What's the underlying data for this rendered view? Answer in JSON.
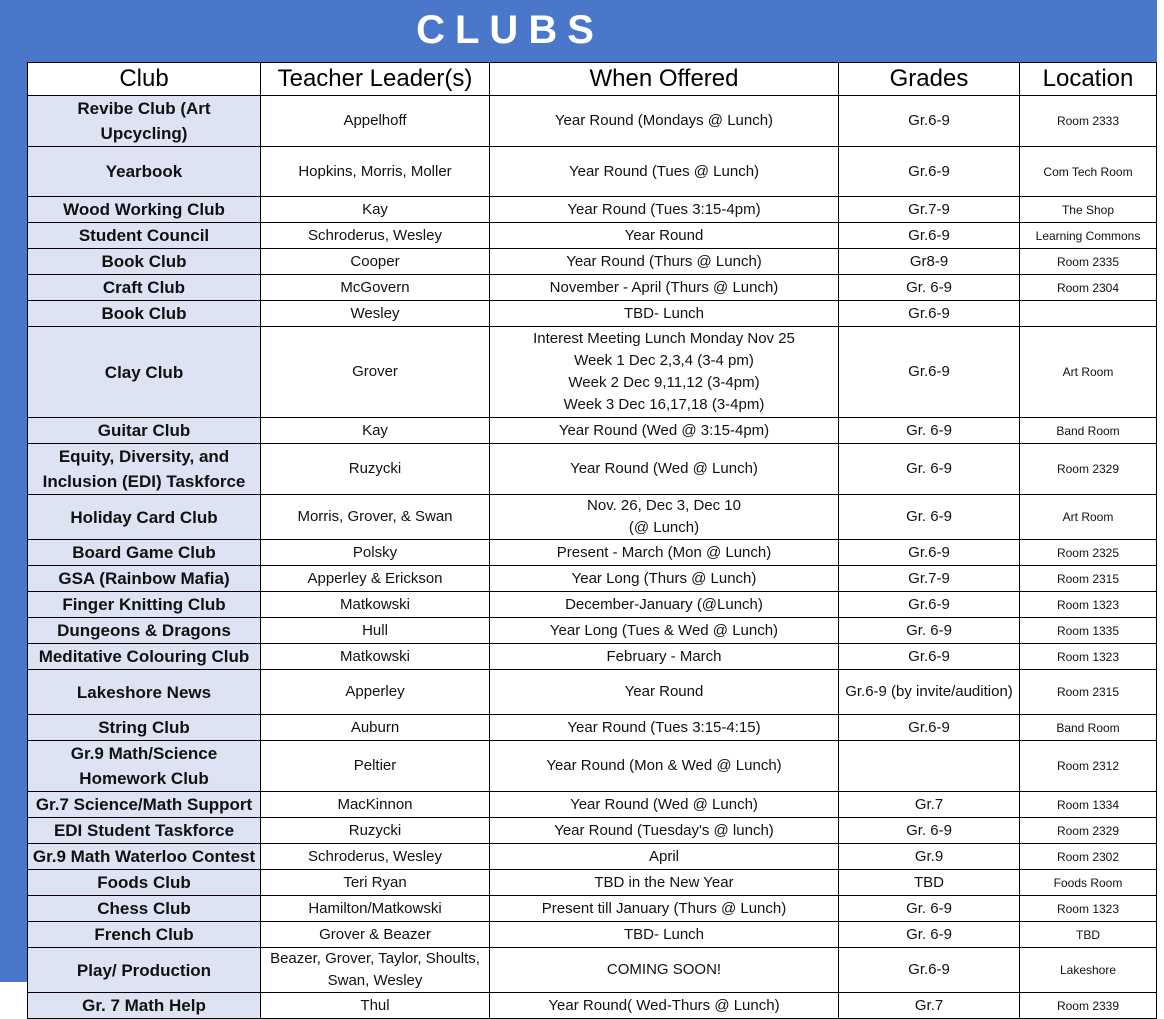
{
  "title": "CLUBS",
  "table": {
    "headers": [
      "Club",
      "Teacher Leader(s)",
      "When Offered",
      "Grades",
      "Location"
    ],
    "rows": [
      [
        "Revibe Club (Art Upcycling)",
        "Appelhoff",
        "Year Round (Mondays @ Lunch)",
        "Gr.6-9",
        "Room 2333"
      ],
      [
        "Yearbook",
        "Hopkins,  Morris, Moller",
        "Year Round (Tues @ Lunch)",
        "Gr.6-9",
        "Com Tech Room"
      ],
      [
        "Wood Working Club",
        "Kay",
        "Year Round (Tues 3:15-4pm)",
        "Gr.7-9",
        "The Shop"
      ],
      [
        "Student Council",
        "Schroderus, Wesley",
        "Year Round",
        "Gr.6-9",
        "Learning Commons"
      ],
      [
        "Book Club",
        "Cooper",
        "Year Round (Thurs @ Lunch)",
        "Gr8-9",
        "Room 2335"
      ],
      [
        "Craft Club",
        "McGovern",
        "November - April (Thurs @ Lunch)",
        "Gr. 6-9",
        "Room 2304"
      ],
      [
        "Book Club",
        "Wesley",
        "TBD- Lunch",
        "Gr.6-9",
        null
      ],
      [
        "Clay Club",
        "Grover",
        "Interest Meeting  Lunch Monday Nov 25\nWeek 1 Dec 2,3,4 (3-4 pm)\nWeek 2 Dec 9,11,12 (3-4pm)\nWeek 3 Dec 16,17,18 (3-4pm)",
        "Gr.6-9",
        "Art Room"
      ],
      [
        "Guitar Club",
        "Kay",
        "Year Round (Wed @ 3:15-4pm)",
        "Gr. 6-9",
        "Band Room"
      ],
      [
        "Equity, Diversity, and Inclusion (EDI) Taskforce",
        "Ruzycki",
        "Year Round (Wed @ Lunch)",
        "Gr. 6-9",
        "Room 2329"
      ],
      [
        "Holiday Card Club",
        "Morris, Grover, & Swan",
        "Nov. 26, Dec 3, Dec 10\n(@ Lunch)",
        "Gr. 6-9",
        "Art Room"
      ],
      [
        "Board Game Club",
        "Polsky",
        "Present - March (Mon @ Lunch)",
        "Gr.6-9",
        "Room 2325"
      ],
      [
        "GSA (Rainbow Mafia)",
        "Apperley & Erickson",
        "Year Long (Thurs @ Lunch)",
        "Gr.7-9",
        "Room 2315"
      ],
      [
        "Finger Knitting Club",
        "Matkowski",
        "December-January (@Lunch)",
        "Gr.6-9",
        "Room 1323"
      ],
      [
        "Dungeons & Dragons",
        "Hull",
        "Year Long (Tues & Wed @ Lunch)",
        "Gr. 6-9",
        "Room 1335"
      ],
      [
        "Meditative Colouring Club",
        "Matkowski",
        "February - March",
        "Gr.6-9",
        "Room 1323"
      ],
      [
        "Lakeshore News",
        "Apperley",
        "Year Round",
        "Gr.6-9 (by invite/audition)",
        "Room 2315"
      ],
      [
        "String Club",
        "Auburn",
        "Year Round (Tues 3:15-4:15)",
        "Gr.6-9",
        "Band Room"
      ],
      [
        "Gr.9 Math/Science Homework Club",
        "Peltier",
        "Year Round (Mon & Wed @ Lunch)",
        null,
        "Room 2312"
      ],
      [
        "Gr.7 Science/Math Support",
        "MacKinnon",
        "Year Round (Wed @ Lunch)",
        "Gr.7",
        "Room 1334"
      ],
      [
        "EDI Student Taskforce",
        "Ruzycki",
        "Year Round (Tuesday's @ lunch)",
        "Gr. 6-9",
        "Room 2329"
      ],
      [
        "Gr.9 Math Waterloo Contest",
        "Schroderus, Wesley",
        "April",
        "Gr.9",
        "Room 2302"
      ],
      [
        "Foods Club",
        "Teri Ryan",
        "TBD in the New Year",
        "TBD",
        "Foods Room"
      ],
      [
        "Chess Club",
        "Hamilton/Matkowski",
        "Present till January (Thurs @ Lunch)",
        "Gr. 6-9",
        "Room 1323"
      ],
      [
        "French Club",
        "Grover & Beazer",
        "TBD- Lunch",
        "Gr. 6-9",
        "TBD"
      ],
      [
        "Play/ Production",
        "Beazer, Grover, Taylor, Shoults, Swan, Wesley",
        "COMING SOON!",
        "Gr.6-9",
        "Lakeshore"
      ],
      [
        "Gr. 7 Math Help",
        "Thul",
        "Year Round( Wed-Thurs @ Lunch)",
        "Gr.7",
        "Room 2339"
      ]
    ]
  }
}
